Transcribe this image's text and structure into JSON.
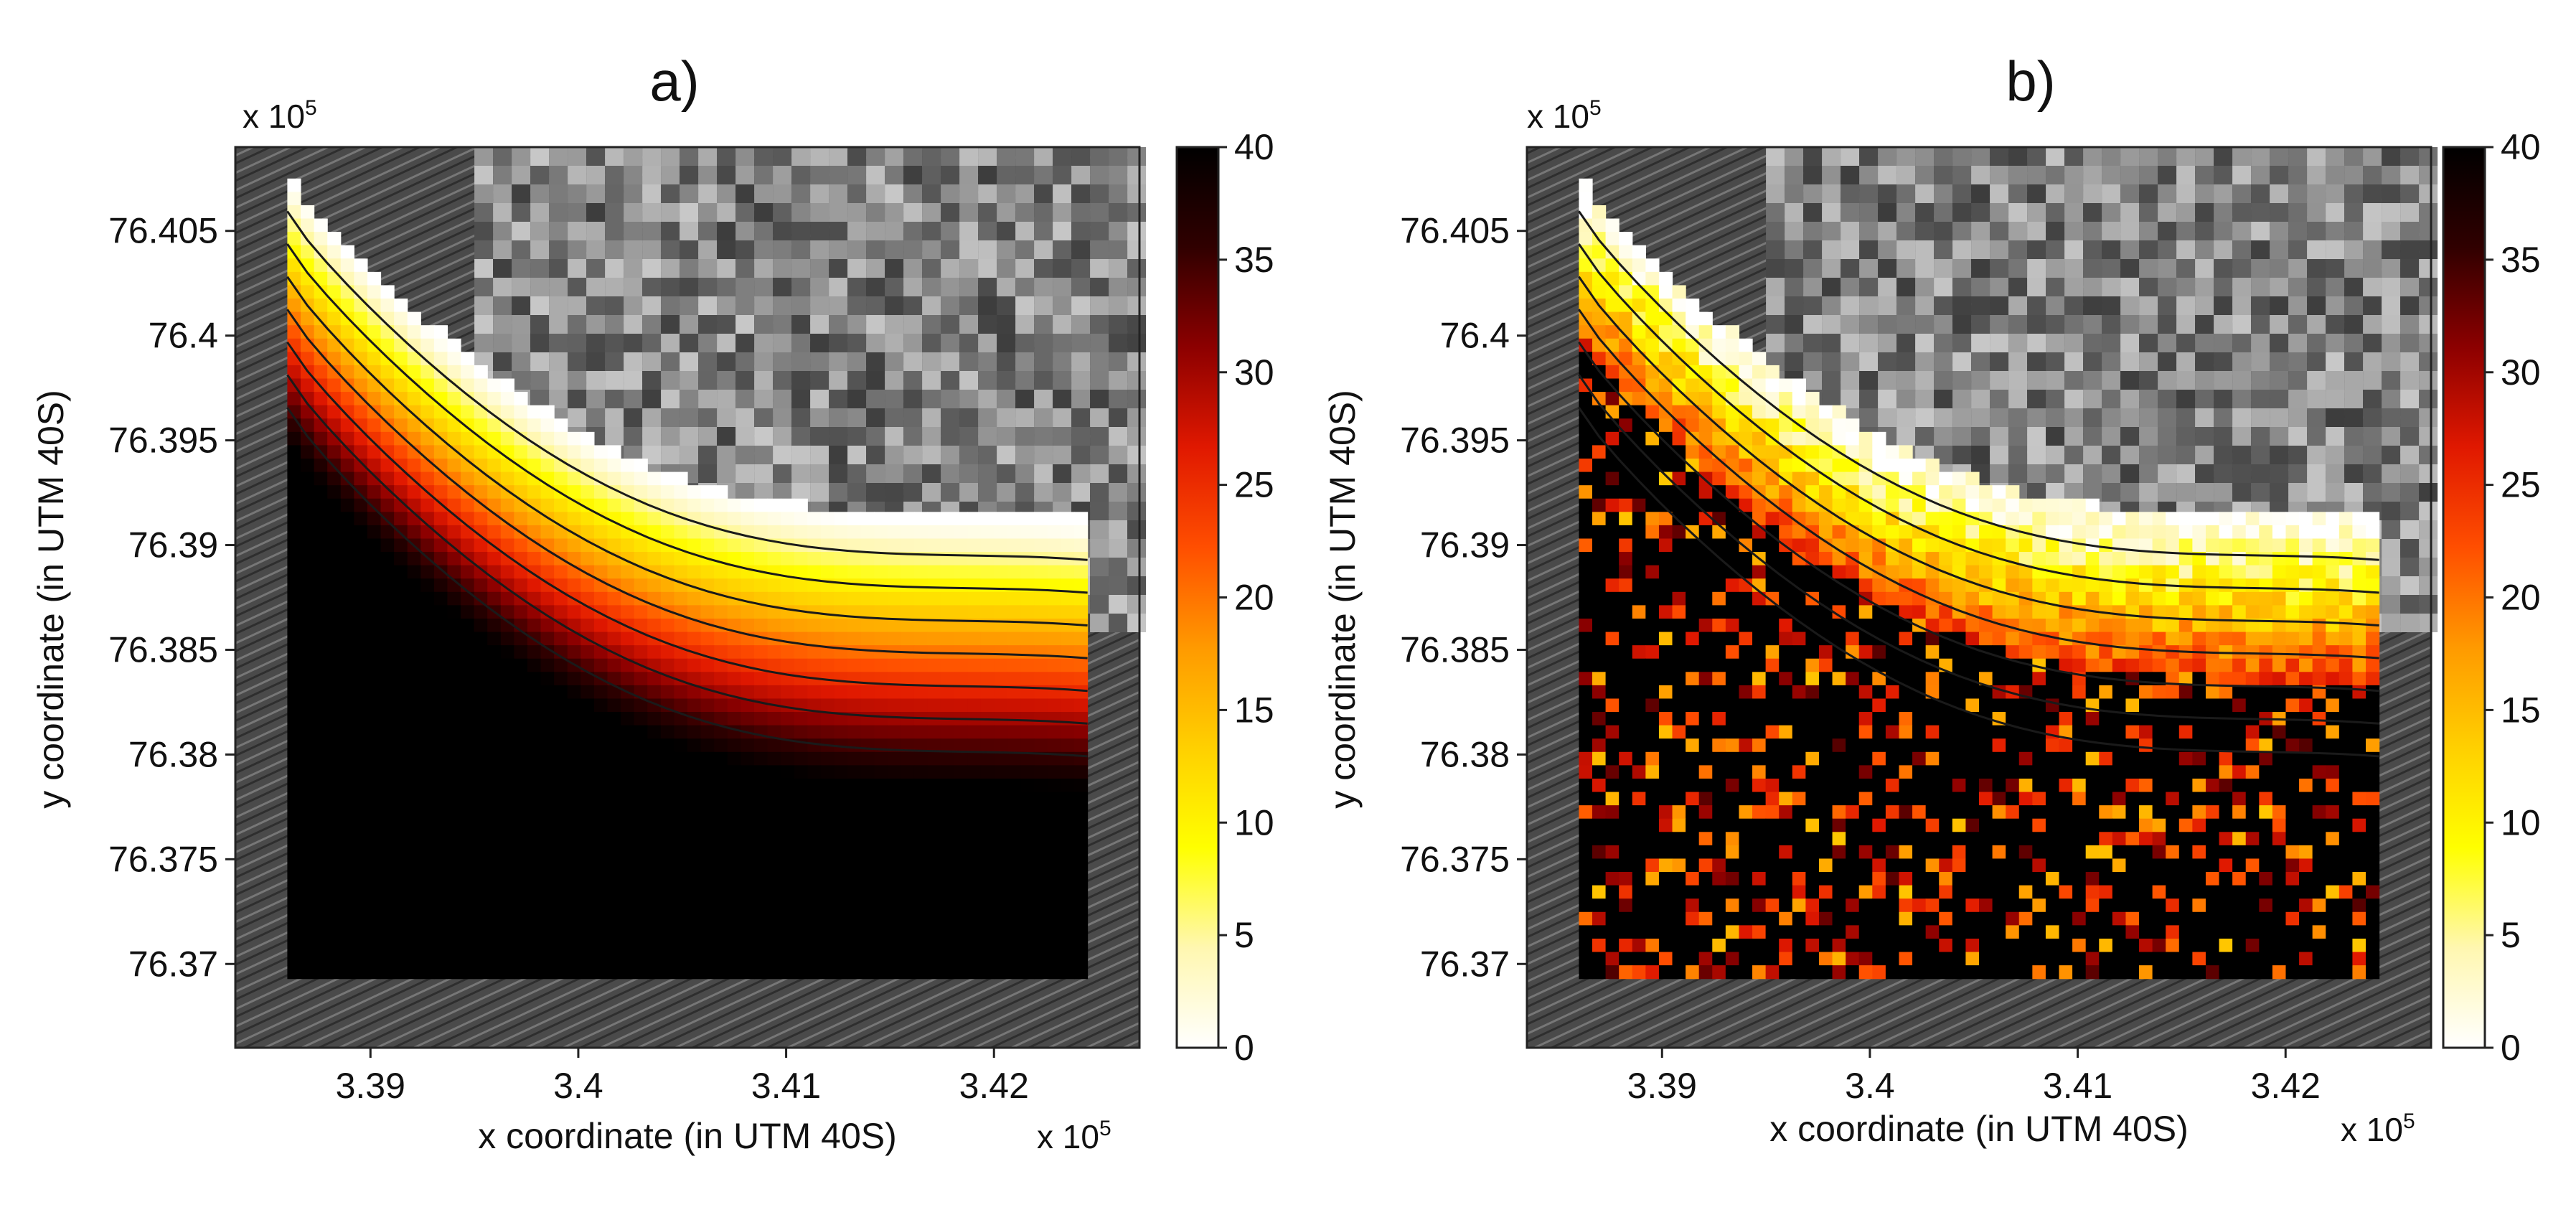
{
  "figure": {
    "background": "#ffffff",
    "palette": [
      "#ffffff",
      "#fff7b0",
      "#ffff00",
      "#ffd000",
      "#ff9a00",
      "#ff4e00",
      "#e01800",
      "#8c0000",
      "#300000",
      "#000000"
    ],
    "land_color": "#5a5a5a",
    "sea_color": "#4a4a4a"
  },
  "chart_data": [
    {
      "type": "heatmap",
      "panel_label": "a)",
      "description": "smooth",
      "xlabel": "x coordinate (in UTM 40S)",
      "ylabel": "y coordinate (in UTM 40S)",
      "x_exponent_label": "x 10",
      "x_exponent_power": "5",
      "y_exponent_label": "x 10",
      "y_exponent_power": "5",
      "xticks": [
        3.39,
        3.4,
        3.41,
        3.42
      ],
      "xtick_labels": [
        "3.39",
        "3.4",
        "3.41",
        "3.42"
      ],
      "yticks": [
        76.405,
        76.4,
        76.395,
        76.39,
        76.385,
        76.38,
        76.375,
        76.37
      ],
      "ytick_labels": [
        "76.405",
        "76.4",
        "76.395",
        "76.39",
        "76.385",
        "76.38",
        "76.375",
        "76.37"
      ],
      "xlim": [
        3.3835,
        3.427
      ],
      "ylim": [
        76.366,
        76.409
      ],
      "colorbar": {
        "min": 0,
        "max": 40,
        "ticks": [
          0,
          5,
          10,
          15,
          20,
          25,
          30,
          35,
          40
        ],
        "tick_labels": [
          "0",
          "5",
          "10",
          "15",
          "20",
          "25",
          "30",
          "35",
          "40"
        ],
        "colormap": "hot (reversed)"
      },
      "contour_levels": [
        5,
        10,
        15,
        20,
        25,
        30,
        35
      ],
      "data_extent": {
        "x": [
          3.386,
          3.4245
        ],
        "y": [
          76.3693,
          76.4075
        ]
      }
    },
    {
      "type": "heatmap",
      "panel_label": "b)",
      "description": "noisy",
      "xlabel": "x coordinate (in UTM 40S)",
      "ylabel": "y coordinate (in UTM 40S)",
      "x_exponent_label": "x 10",
      "x_exponent_power": "5",
      "y_exponent_label": "x 10",
      "y_exponent_power": "5",
      "xticks": [
        3.39,
        3.4,
        3.41,
        3.42
      ],
      "xtick_labels": [
        "3.39",
        "3.4",
        "3.41",
        "3.42"
      ],
      "yticks": [
        76.405,
        76.4,
        76.395,
        76.39,
        76.385,
        76.38,
        76.375,
        76.37
      ],
      "ytick_labels": [
        "76.405",
        "76.4",
        "76.395",
        "76.39",
        "76.385",
        "76.38",
        "76.375",
        "76.37"
      ],
      "xlim": [
        3.3835,
        3.427
      ],
      "ylim": [
        76.366,
        76.409
      ],
      "colorbar": {
        "min": 0,
        "max": 40,
        "ticks": [
          0,
          5,
          10,
          15,
          20,
          25,
          30,
          35,
          40
        ],
        "tick_labels": [
          "0",
          "5",
          "10",
          "15",
          "20",
          "25",
          "30",
          "35",
          "40"
        ],
        "colormap": "hot (reversed)"
      },
      "contour_levels": [
        5,
        10,
        15,
        20,
        25,
        30,
        35
      ],
      "data_extent": {
        "x": [
          3.386,
          3.4245
        ],
        "y": [
          76.3693,
          76.4075
        ]
      }
    }
  ]
}
